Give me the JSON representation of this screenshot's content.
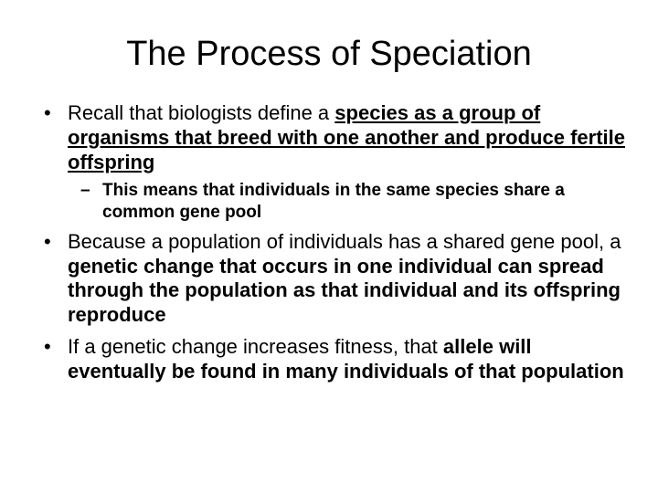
{
  "slide": {
    "title": "The Process of Speciation",
    "bullets": [
      {
        "segments": [
          {
            "text": "Recall that biologists define a ",
            "style": "normal"
          },
          {
            "text": "species as a group of organisms that breed with one another and produce fertile offspring",
            "style": "bold-underline"
          }
        ],
        "sub": [
          {
            "text": "This means that individuals in the same species share a common gene pool"
          }
        ]
      },
      {
        "segments": [
          {
            "text": "Because a population of individuals has a shared gene pool, a ",
            "style": "normal"
          },
          {
            "text": "genetic change that occurs in one individual can spread through the population as that individual and its offspring reproduce",
            "style": "bold"
          }
        ]
      },
      {
        "segments": [
          {
            "text": "If a genetic change increases fitness, that ",
            "style": "normal"
          },
          {
            "text": "allele will eventually be found in many individuals of that population",
            "style": "bold"
          }
        ]
      }
    ]
  },
  "style": {
    "background_color": "#ffffff",
    "text_color": "#000000",
    "title_fontsize": 38,
    "body_fontsize": 22,
    "sub_fontsize": 19,
    "font_family": "Arial"
  }
}
